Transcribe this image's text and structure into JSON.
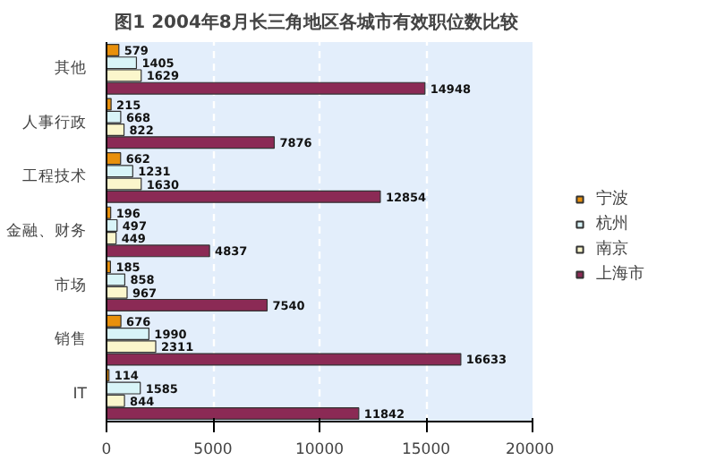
{
  "chart_data": {
    "type": "bar",
    "orientation": "horizontal",
    "title": "图1  2004年8月长三角地区各城市有效职位数比较",
    "categories": [
      "其他",
      "人事行政",
      "工程技术",
      "金融、财务",
      "市场",
      "销售",
      "IT"
    ],
    "series": [
      {
        "name": "宁波",
        "color": "#e8900c",
        "values": [
          579,
          215,
          662,
          196,
          185,
          676,
          114
        ]
      },
      {
        "name": "杭州",
        "color": "#d8f4f8",
        "values": [
          1405,
          668,
          1231,
          497,
          858,
          1990,
          1585
        ]
      },
      {
        "name": "南京",
        "color": "#fbf6cc",
        "values": [
          1629,
          822,
          1630,
          449,
          967,
          2311,
          844
        ]
      },
      {
        "name": "上海市",
        "color": "#8b2a55",
        "values": [
          14948,
          7876,
          12854,
          4837,
          7540,
          16633,
          11842
        ]
      }
    ],
    "xlim": [
      0,
      20000
    ],
    "xticks": [
      0,
      5000,
      10000,
      15000,
      20000
    ],
    "grid": "x",
    "legend": "right",
    "data_labels": true
  }
}
